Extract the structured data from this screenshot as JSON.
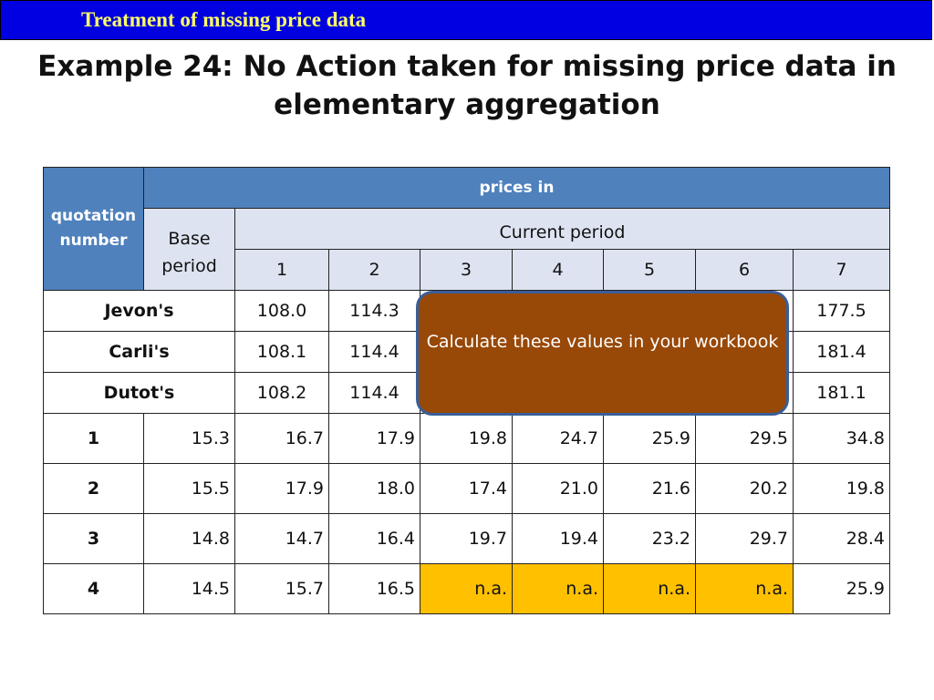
{
  "header": {
    "section_title": "Treatment of missing price data"
  },
  "slide": {
    "title_line1": "Example 24: No Action taken for missing price data in",
    "title_line2": "elementary aggregation"
  },
  "table": {
    "quotation_header_line1": "quotation",
    "quotation_header_line2": "number",
    "prices_in_label": "prices in",
    "base_label_line1": "Base",
    "base_label_line2": "period",
    "current_period_label": "Current period",
    "periods": [
      "1",
      "2",
      "3",
      "4",
      "5",
      "6",
      "7"
    ],
    "aggregates": [
      {
        "name": "Jevon's",
        "values": [
          "108.0",
          "114.3",
          "177.5"
        ]
      },
      {
        "name": "Carli's",
        "values": [
          "108.1",
          "114.4",
          "181.4"
        ]
      },
      {
        "name": "Dutot's",
        "values": [
          "108.2",
          "114.4",
          "181.1"
        ]
      }
    ],
    "rows": [
      {
        "id": "1",
        "base": "15.3",
        "values": [
          "16.7",
          "17.9",
          "19.8",
          "24.7",
          "25.9",
          "29.5",
          "34.8"
        ]
      },
      {
        "id": "2",
        "base": "15.5",
        "values": [
          "17.9",
          "18.0",
          "17.4",
          "21.0",
          "21.6",
          "20.2",
          "19.8"
        ]
      },
      {
        "id": "3",
        "base": "14.8",
        "values": [
          "14.7",
          "16.4",
          "19.7",
          "19.4",
          "23.2",
          "29.7",
          "28.4"
        ]
      },
      {
        "id": "4",
        "base": "14.5",
        "values": [
          "15.7",
          "16.5",
          "n.a.",
          "n.a.",
          "n.a.",
          "n.a.",
          "25.9"
        ]
      }
    ]
  },
  "callout": {
    "text": "Calculate these values in your workbook"
  },
  "colors": {
    "header_blue": "#4f81bd",
    "missing_highlight": "#ffc000",
    "callout_fill": "#984807",
    "banner_blue": "#0000e0"
  }
}
